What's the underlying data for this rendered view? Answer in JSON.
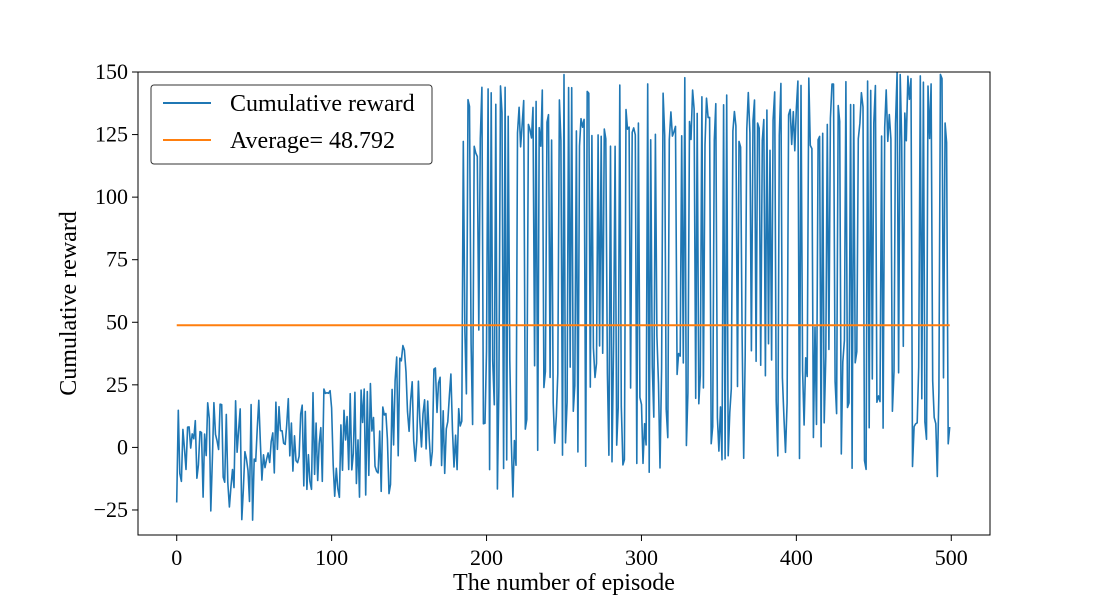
{
  "chart_data": {
    "type": "line",
    "title": "",
    "xlabel": "The number of episode",
    "ylabel": "Cumulative reward",
    "xlim": [
      -25,
      525
    ],
    "ylim": [
      -35,
      150
    ],
    "xticks": [
      0,
      100,
      200,
      300,
      400,
      500
    ],
    "yticks": [
      -25,
      0,
      25,
      50,
      75,
      100,
      125,
      150
    ],
    "ytick_labels": [
      "−25",
      "0",
      "25",
      "50",
      "75",
      "100",
      "125",
      "150"
    ],
    "grid": false,
    "legend_position": "top-left",
    "series": [
      {
        "name": "Cumulative reward",
        "color": "#1f77b4",
        "segments": [
          {
            "x0": 0,
            "x1": 19,
            "low": -22,
            "high": 18
          },
          {
            "x0": 20,
            "x1": 49,
            "low": -32,
            "high": 22
          },
          {
            "x0": 50,
            "x1": 89,
            "low": -20,
            "high": 22
          },
          {
            "x0": 90,
            "x1": 139,
            "low": -20,
            "high": 27
          },
          {
            "x0": 140,
            "x1": 150,
            "low": -5,
            "high": 41
          },
          {
            "x0": 151,
            "x1": 184,
            "low": -17,
            "high": 32
          },
          {
            "x0": 185,
            "x1": 200,
            "low": 5,
            "high": 145
          },
          {
            "x0": 201,
            "x1": 260,
            "low": -20,
            "high": 149
          },
          {
            "x0": 261,
            "x1": 370,
            "low": -10,
            "high": 149
          },
          {
            "x0": 371,
            "x1": 420,
            "low": -6,
            "high": 148
          },
          {
            "x0": 421,
            "x1": 499,
            "low": -12,
            "high": 150
          }
        ],
        "seed": 7
      },
      {
        "name": "Average= 48.792",
        "color": "#ff7f0e",
        "x": [
          0,
          499
        ],
        "values": [
          48.792,
          48.792
        ]
      }
    ]
  }
}
